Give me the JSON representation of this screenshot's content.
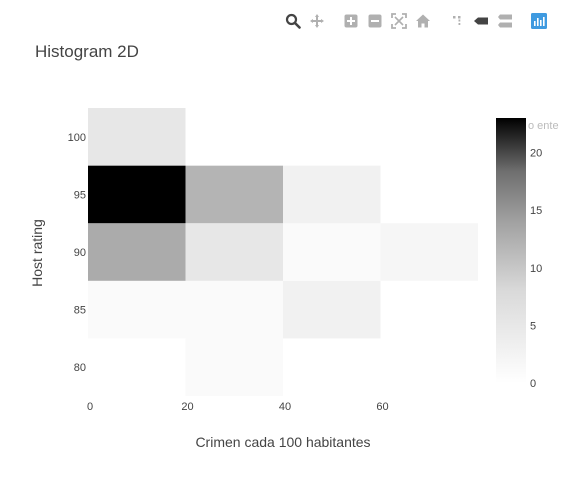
{
  "toolbar": {
    "icons": [
      "zoom-icon",
      "pan-icon",
      "zoom-in-icon",
      "zoom-out-icon",
      "autoscale-icon",
      "reset-axes-icon",
      "spike-lines-icon",
      "hover-closest-icon",
      "hover-compare-icon",
      "plotly-logo-icon"
    ],
    "active_color": "#444444",
    "inactive_color": "#b0b0b0",
    "logo_color": "#3f9ae0"
  },
  "chart_data": {
    "type": "heatmap",
    "title": "Histogram 2D",
    "xlabel": "Crimen cada 100 habitantes",
    "ylabel": "Host rating",
    "colorbar_title": "o ente",
    "x_bins": [
      [
        0,
        20
      ],
      [
        20,
        40
      ],
      [
        40,
        60
      ],
      [
        60,
        80
      ]
    ],
    "y_bins": [
      [
        77.5,
        82.5
      ],
      [
        82.5,
        87.5
      ],
      [
        87.5,
        92.5
      ],
      [
        92.5,
        97.5
      ],
      [
        97.5,
        102.5
      ]
    ],
    "counts": [
      [
        0,
        1,
        0,
        0
      ],
      [
        1,
        1,
        3,
        0
      ],
      [
        13,
        5,
        1,
        2
      ],
      [
        23,
        12,
        3,
        0
      ],
      [
        5,
        0,
        0,
        0
      ]
    ],
    "xlim": [
      0,
      80
    ],
    "ylim": [
      77.5,
      102.5
    ],
    "x_ticks": [
      "0",
      "20",
      "40",
      "60"
    ],
    "x_tick_values": [
      0,
      20,
      40,
      60
    ],
    "y_ticks": [
      "80",
      "85",
      "90",
      "95",
      "100"
    ],
    "y_tick_values": [
      80,
      85,
      90,
      95,
      100
    ],
    "colorscale": "Greys",
    "zmin": 0,
    "zmax": 23,
    "colorbar_ticks": [
      "0",
      "5",
      "10",
      "15",
      "20"
    ],
    "colorbar_tick_values": [
      0,
      5,
      10,
      15,
      20
    ],
    "grid": false,
    "legend": "none"
  }
}
